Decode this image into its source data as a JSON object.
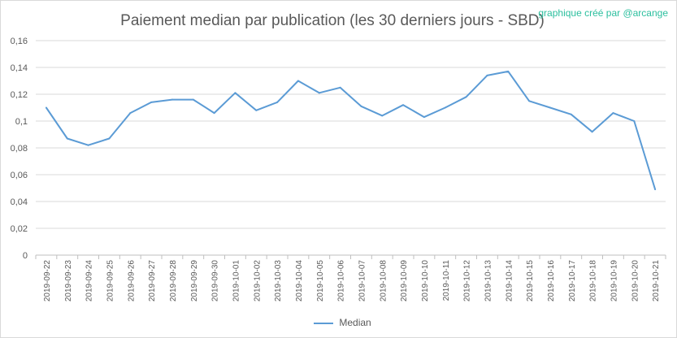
{
  "chart_data": {
    "type": "line",
    "title": "Paiement median par publication (les 30 derniers jours - SBD)",
    "credit": "graphique créé par @arcange",
    "categories": [
      "2019-09-22",
      "2019-09-23",
      "2019-09-24",
      "2019-09-25",
      "2019-09-26",
      "2019-09-27",
      "2019-09-28",
      "2019-09-29",
      "2019-09-30",
      "2019-10-01",
      "2019-10-02",
      "2019-10-03",
      "2019-10-04",
      "2019-10-05",
      "2019-10-06",
      "2019-10-07",
      "2019-10-08",
      "2019-10-09",
      "2019-10-10",
      "2019-10-11",
      "2019-10-12",
      "2019-10-13",
      "2019-10-14",
      "2019-10-15",
      "2019-10-16",
      "2019-10-17",
      "2019-10-18",
      "2019-10-19",
      "2019-10-20",
      "2019-10-21"
    ],
    "series": [
      {
        "name": "Median",
        "color": "#5b9bd5",
        "values": [
          0.11,
          0.087,
          0.082,
          0.087,
          0.106,
          0.114,
          0.116,
          0.116,
          0.106,
          0.121,
          0.108,
          0.114,
          0.13,
          0.121,
          0.125,
          0.111,
          0.104,
          0.112,
          0.103,
          0.11,
          0.118,
          0.134,
          0.137,
          0.115,
          0.11,
          0.105,
          0.092,
          0.106,
          0.1,
          0.049
        ]
      }
    ],
    "yticks": [
      "0",
      "0,02",
      "0,04",
      "0,06",
      "0,08",
      "0,1",
      "0,12",
      "0,14",
      "0,16"
    ],
    "ylim": [
      0,
      0.16
    ],
    "grid": true,
    "legend_position": "bottom"
  }
}
